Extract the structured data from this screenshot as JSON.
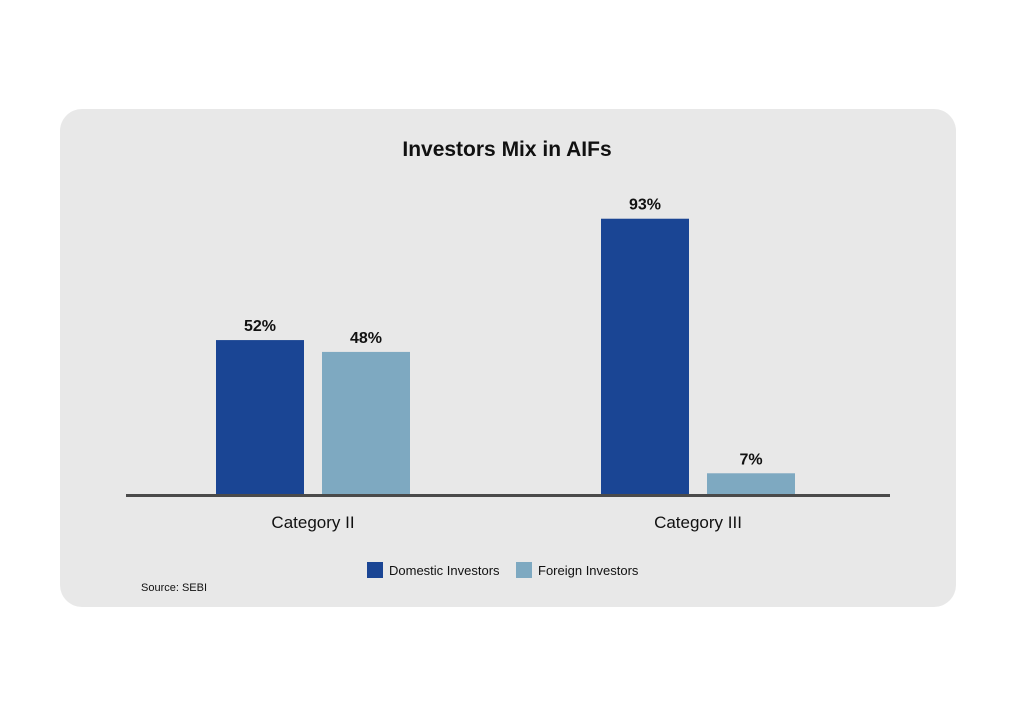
{
  "chart_data": {
    "type": "bar",
    "title": "Investors Mix in AIFs",
    "categories": [
      "Category II",
      "Category III"
    ],
    "series": [
      {
        "name": "Domestic Investors",
        "values": [
          52,
          93
        ],
        "labels": [
          "52%",
          "93%"
        ],
        "color": "#1a4594"
      },
      {
        "name": "Foreign Investors",
        "values": [
          48,
          7
        ],
        "labels": [
          "48%",
          "7%"
        ],
        "color": "#7ea9c1"
      }
    ],
    "xlabel": "",
    "ylabel": "",
    "ylim": [
      0,
      100
    ],
    "grid": false,
    "legend_position": "bottom-center",
    "source": "Source: SEBI"
  }
}
